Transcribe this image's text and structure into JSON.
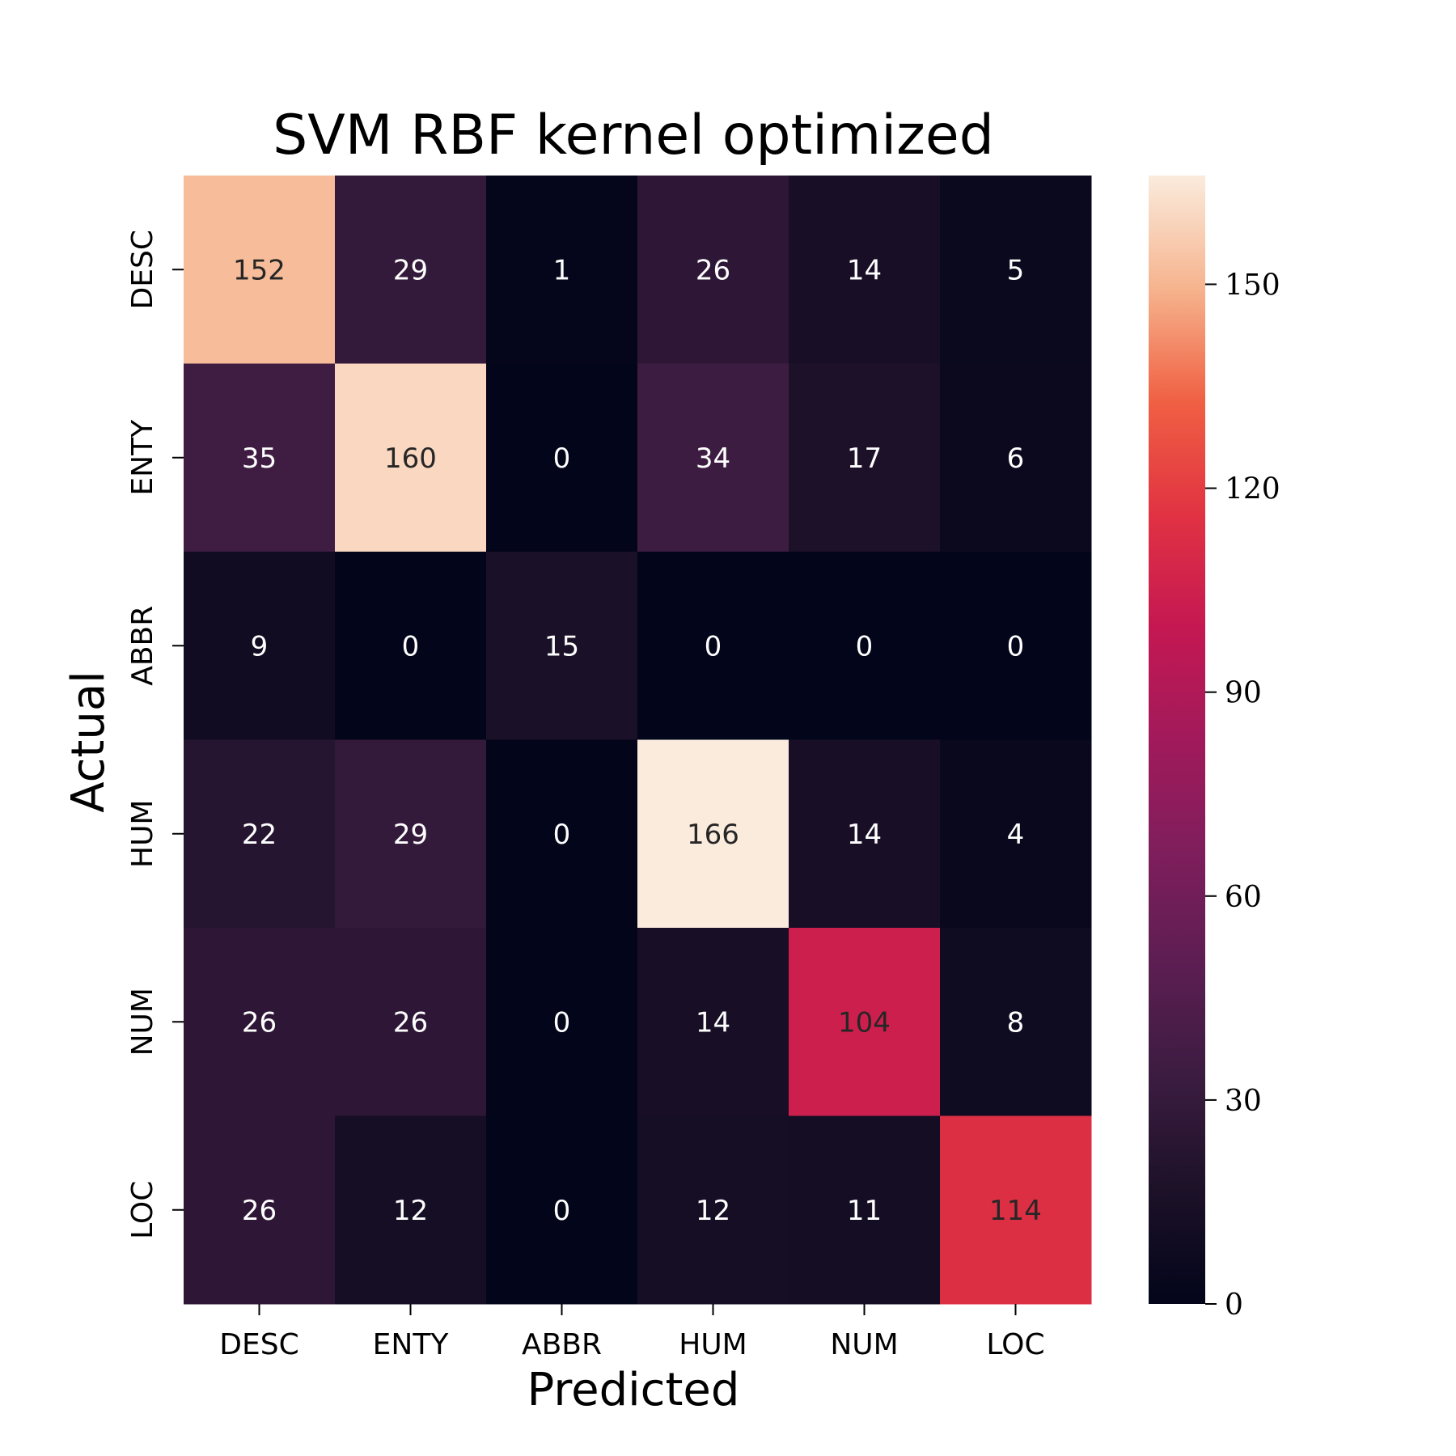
{
  "chart_data": {
    "type": "heatmap",
    "title": "SVM RBF kernel optimized",
    "xlabel": "Predicted",
    "ylabel": "Actual",
    "x_categories": [
      "DESC",
      "ENTY",
      "ABBR",
      "HUM",
      "NUM",
      "LOC"
    ],
    "y_categories": [
      "DESC",
      "ENTY",
      "ABBR",
      "HUM",
      "NUM",
      "LOC"
    ],
    "values": [
      [
        152,
        29,
        1,
        26,
        14,
        5
      ],
      [
        35,
        160,
        0,
        34,
        17,
        6
      ],
      [
        9,
        0,
        15,
        0,
        0,
        0
      ],
      [
        22,
        29,
        0,
        166,
        14,
        4
      ],
      [
        26,
        26,
        0,
        14,
        104,
        8
      ],
      [
        26,
        12,
        0,
        12,
        11,
        114
      ]
    ],
    "colorbar": {
      "colormap": "rocket",
      "range": [
        0,
        166
      ],
      "ticks": [
        0,
        30,
        60,
        90,
        120,
        150
      ]
    }
  }
}
